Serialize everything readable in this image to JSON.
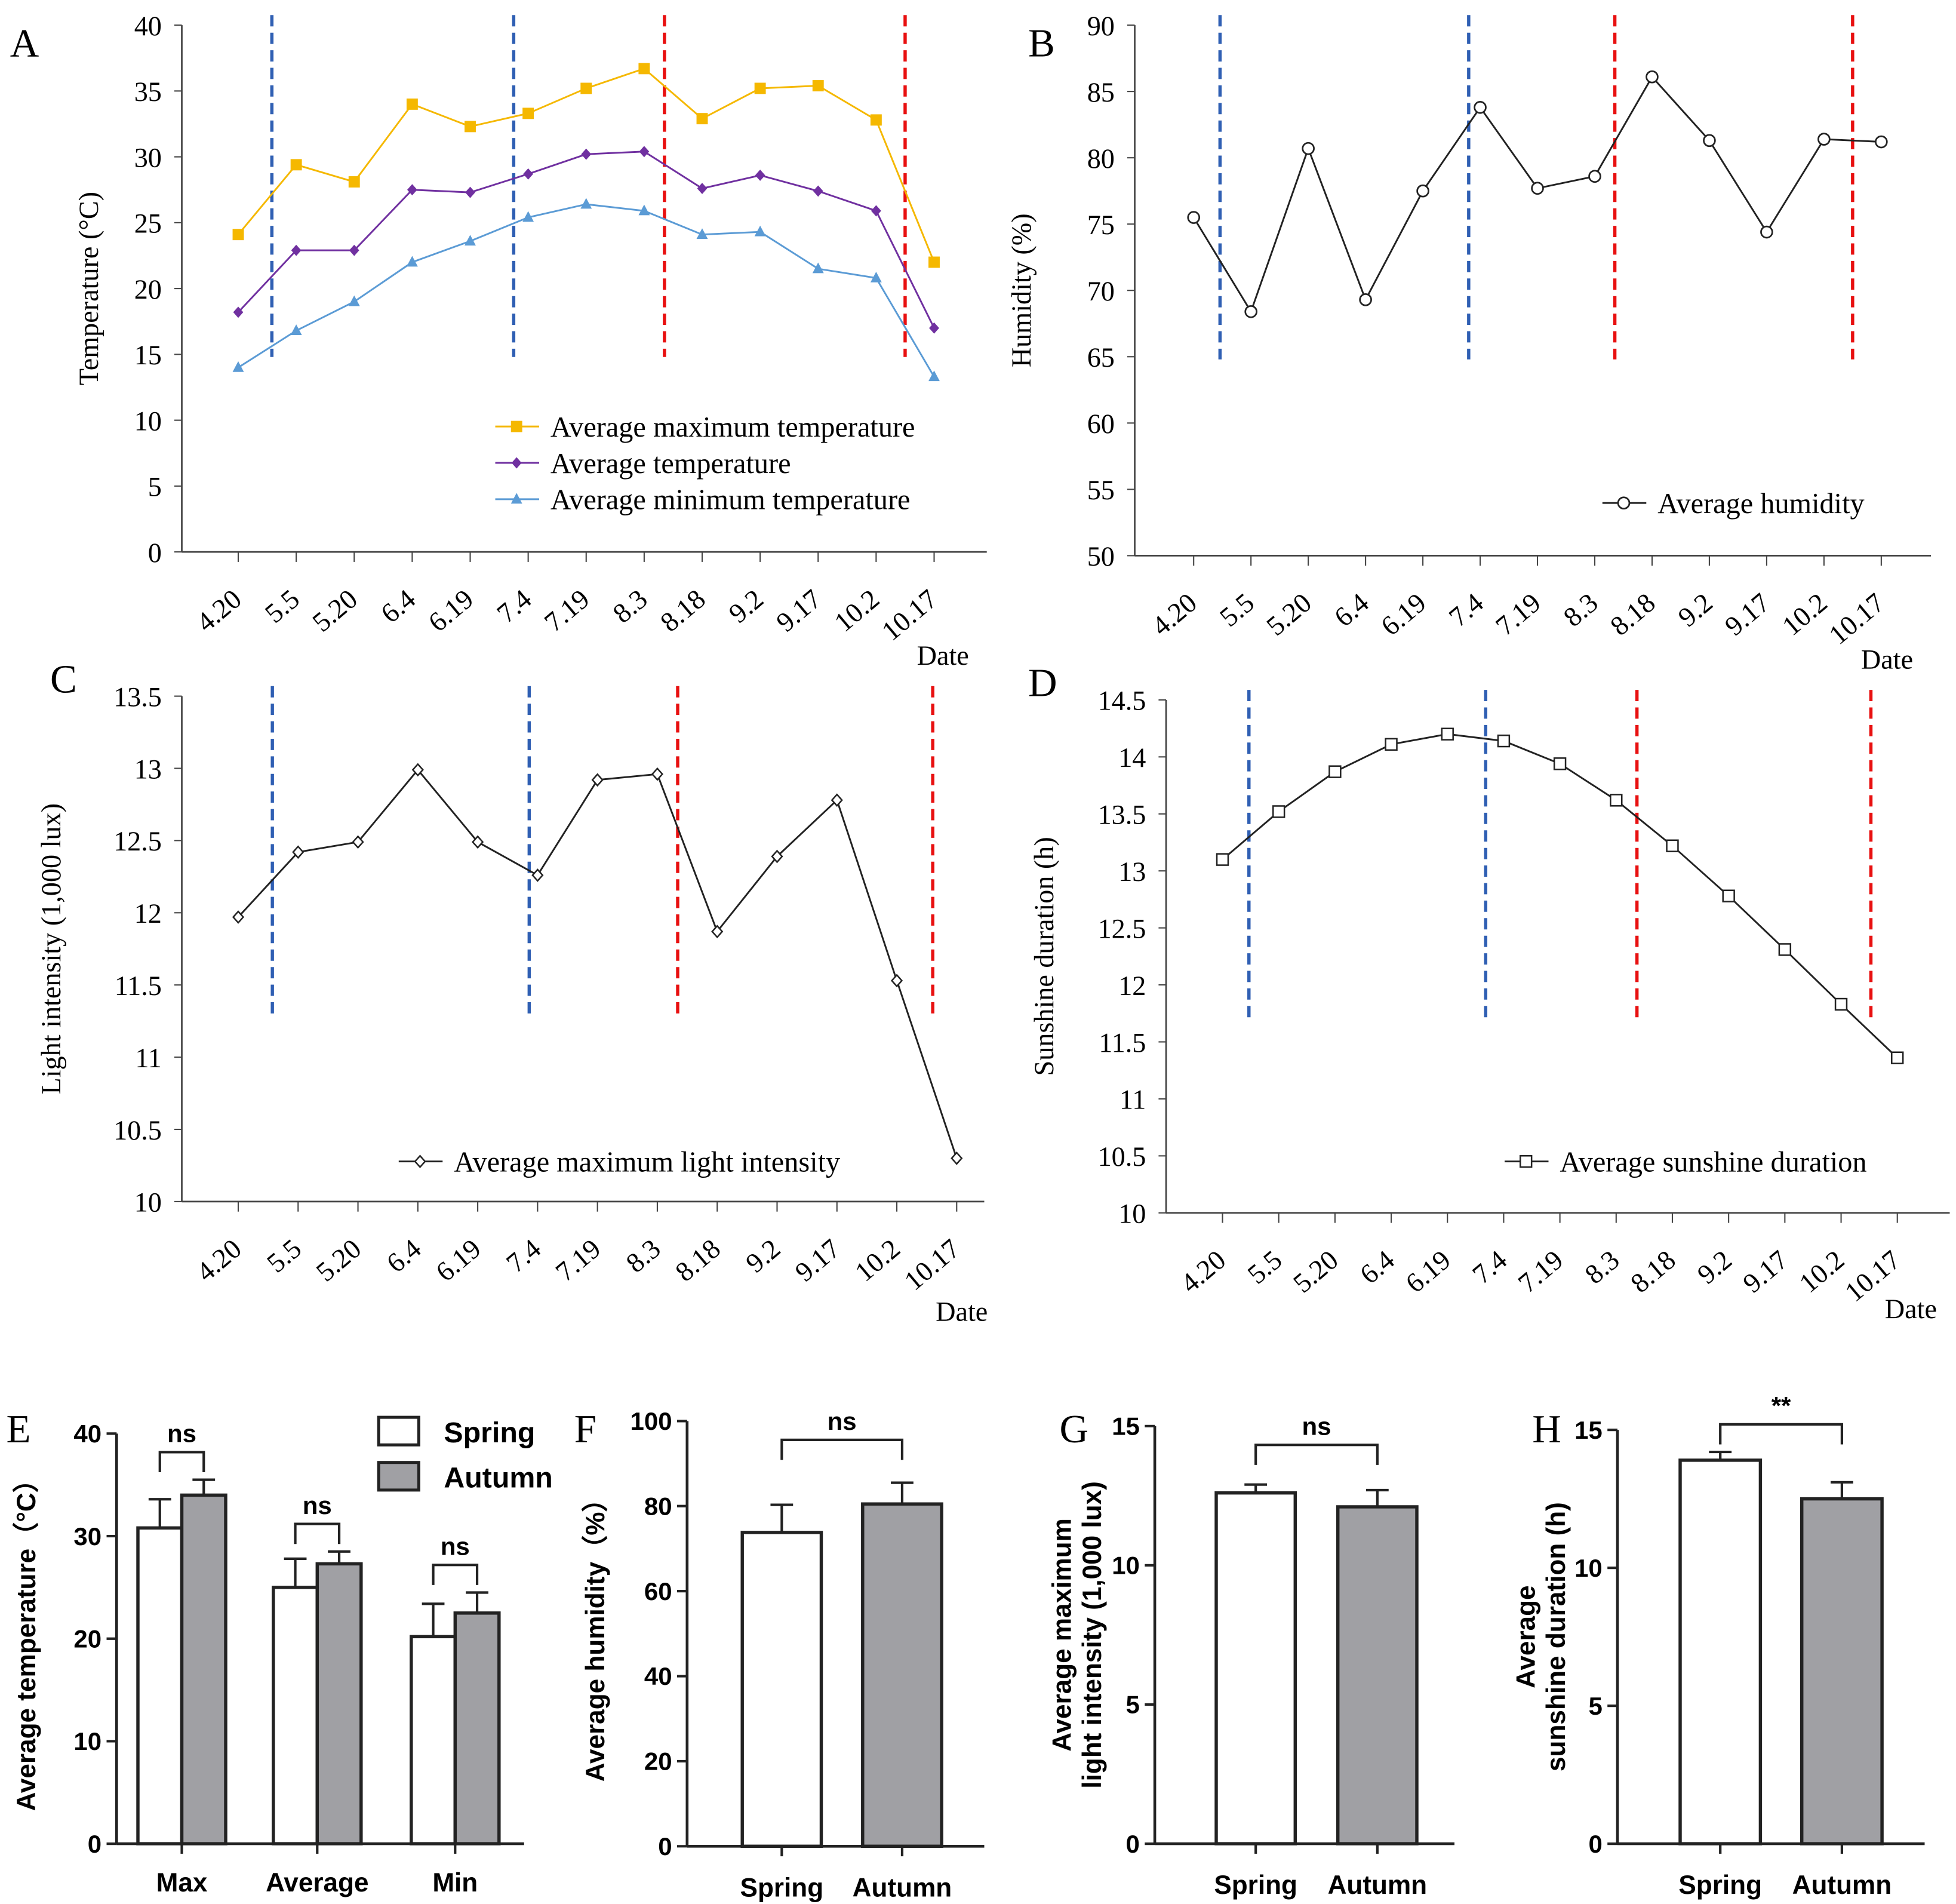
{
  "chart_data": [
    {
      "panel": "A",
      "type": "line",
      "xlabel": "Date",
      "ylabel": "Temperature (°C)",
      "ylim": [
        0,
        40
      ],
      "yticks": [
        0,
        5,
        10,
        15,
        20,
        25,
        30,
        35,
        40
      ],
      "categories": [
        "4.20",
        "5.5",
        "5.20",
        "6.4",
        "6.19",
        "7.4",
        "7.19",
        "8.3",
        "8.18",
        "9.2",
        "9.17",
        "10.2",
        "10.17"
      ],
      "series": [
        {
          "name": "Average maximum temperature",
          "color": "#f5b800",
          "marker": "square",
          "values": [
            24.1,
            29.4,
            28.1,
            34.0,
            32.3,
            33.3,
            35.2,
            36.7,
            32.9,
            35.2,
            35.4,
            32.8,
            22.0
          ]
        },
        {
          "name": "Average temperature",
          "color": "#7030a0",
          "marker": "diamond",
          "values": [
            18.2,
            22.9,
            22.9,
            27.5,
            27.3,
            28.7,
            30.2,
            30.4,
            27.6,
            28.6,
            27.4,
            25.9,
            17.0
          ]
        },
        {
          "name": "Average minimum temperature",
          "color": "#5b9bd5",
          "marker": "triangle",
          "values": [
            14.0,
            16.8,
            19.0,
            22.0,
            23.6,
            25.4,
            26.4,
            25.9,
            24.1,
            24.3,
            21.5,
            20.8,
            13.3
          ]
        }
      ],
      "reference_lines": [
        {
          "x": 0.58,
          "color": "#2f5fb3"
        },
        {
          "x": 4.75,
          "color": "#2f5fb3"
        },
        {
          "x": 7.35,
          "color": "#e81010"
        },
        {
          "x": 11.5,
          "color": "#e81010"
        }
      ],
      "legend": "bottom-right"
    },
    {
      "panel": "B",
      "type": "line",
      "xlabel": "Date",
      "ylabel": "Humidity (%)",
      "ylim": [
        50,
        90
      ],
      "yticks": [
        50,
        55,
        60,
        65,
        70,
        75,
        80,
        85,
        90
      ],
      "categories": [
        "4.20",
        "5.5",
        "5.20",
        "6.4",
        "6.19",
        "7.4",
        "7.19",
        "8.3",
        "8.18",
        "9.2",
        "9.17",
        "10.2",
        "10.17"
      ],
      "series": [
        {
          "name": "Average humidity",
          "color": "#222222",
          "marker": "circle",
          "values": [
            75.5,
            68.4,
            80.7,
            69.3,
            77.5,
            83.8,
            77.7,
            78.6,
            86.1,
            81.3,
            74.4,
            81.4,
            81.2
          ]
        }
      ],
      "reference_lines": [
        {
          "x": 0.46,
          "color": "#2f5fb3"
        },
        {
          "x": 4.8,
          "color": "#2f5fb3"
        },
        {
          "x": 7.35,
          "color": "#e81010"
        },
        {
          "x": 11.5,
          "color": "#e81010"
        }
      ],
      "legend": "bottom-right"
    },
    {
      "panel": "C",
      "type": "line",
      "xlabel": "Date",
      "ylabel": "Light intensity (1,000 lux)",
      "ylim": [
        10,
        13.5
      ],
      "yticks": [
        10,
        10.5,
        11,
        11.5,
        12,
        12.5,
        13,
        13.5
      ],
      "categories": [
        "4.20",
        "5.5",
        "5.20",
        "6.4",
        "6.19",
        "7.4",
        "7.19",
        "8.3",
        "8.18",
        "9.2",
        "9.17",
        "10.2",
        "10.17"
      ],
      "series": [
        {
          "name": "Average maximum light intensity",
          "color": "#222222",
          "marker": "diamond-open",
          "values": [
            11.97,
            12.42,
            12.49,
            12.99,
            12.49,
            12.26,
            12.92,
            12.96,
            11.87,
            12.39,
            12.78,
            11.53,
            10.3
          ]
        }
      ],
      "reference_lines": [
        {
          "x": 0.57,
          "color": "#2f5fb3"
        },
        {
          "x": 4.86,
          "color": "#2f5fb3"
        },
        {
          "x": 7.34,
          "color": "#e81010"
        },
        {
          "x": 11.6,
          "color": "#e81010"
        }
      ],
      "legend": "bottom-right"
    },
    {
      "panel": "D",
      "type": "line",
      "xlabel": "Date",
      "ylabel": "Sunshine duration (h)",
      "ylim": [
        10,
        14.5
      ],
      "yticks": [
        10,
        10.5,
        11,
        11.5,
        12,
        12.5,
        13,
        13.5,
        14,
        14.5
      ],
      "categories": [
        "4.20",
        "5.5",
        "5.20",
        "6.4",
        "6.19",
        "7.4",
        "7.19",
        "8.3",
        "8.18",
        "9.2",
        "9.17",
        "10.2",
        "10.17"
      ],
      "series": [
        {
          "name": "Average sunshine duration",
          "color": "#222222",
          "marker": "square-open",
          "values": [
            13.1,
            13.52,
            13.87,
            14.11,
            14.2,
            14.14,
            13.94,
            13.62,
            13.22,
            12.78,
            12.31,
            11.83,
            11.36
          ]
        }
      ],
      "reference_lines": [
        {
          "x": 0.47,
          "color": "#2f5fb3"
        },
        {
          "x": 4.68,
          "color": "#2f5fb3"
        },
        {
          "x": 7.37,
          "color": "#e81010"
        },
        {
          "x": 11.53,
          "color": "#e81010"
        }
      ],
      "legend": "bottom-right"
    },
    {
      "panel": "E",
      "type": "bar",
      "ylabel": "Average temperature（°C）",
      "ylim": [
        0,
        40
      ],
      "yticks": [
        0,
        10,
        20,
        30,
        40
      ],
      "categories": [
        "Max",
        "Average",
        "Min"
      ],
      "series": [
        {
          "name": "Spring",
          "color": "#ffffff",
          "values": [
            30.8,
            25.0,
            20.2
          ],
          "errors": [
            2.8,
            2.8,
            3.2
          ]
        },
        {
          "name": "Autumn",
          "color": "#a0a0a4",
          "values": [
            34.0,
            27.3,
            22.5
          ],
          "errors": [
            1.5,
            1.2,
            2.0
          ]
        }
      ],
      "significance": [
        "ns",
        "ns",
        "ns"
      ],
      "legend": "top-right"
    },
    {
      "panel": "F",
      "type": "bar",
      "ylabel": "Average humidity（%）",
      "ylim": [
        0,
        100
      ],
      "yticks": [
        0,
        20,
        40,
        60,
        80,
        100
      ],
      "categories": [
        "Spring",
        "Autumn"
      ],
      "values": [
        73.8,
        80.5
      ],
      "errors": [
        6.5,
        5.0
      ],
      "colors": [
        "#ffffff",
        "#a0a0a4"
      ],
      "significance": "ns"
    },
    {
      "panel": "G",
      "type": "bar",
      "ylabel": "Average maximum light intensity (1,000 lux)",
      "ylabel_lines": [
        "Average maximum",
        "light intensity (1,000 lux)"
      ],
      "ylim": [
        0,
        15
      ],
      "yticks": [
        0,
        5,
        10,
        15
      ],
      "categories": [
        "Spring",
        "Autumn"
      ],
      "values": [
        12.6,
        12.1
      ],
      "errors": [
        0.3,
        0.6
      ],
      "colors": [
        "#ffffff",
        "#a0a0a4"
      ],
      "significance": "ns"
    },
    {
      "panel": "H",
      "type": "bar",
      "ylabel": "Average sunshine duration (h)",
      "ylabel_lines": [
        "Average",
        "sunshine duration (h)"
      ],
      "ylim": [
        0,
        15
      ],
      "yticks": [
        0,
        5,
        10,
        15
      ],
      "categories": [
        "Spring",
        "Autumn"
      ],
      "values": [
        13.9,
        12.5
      ],
      "errors": [
        0.3,
        0.6
      ],
      "colors": [
        "#ffffff",
        "#a0a0a4"
      ],
      "significance": "**"
    }
  ]
}
